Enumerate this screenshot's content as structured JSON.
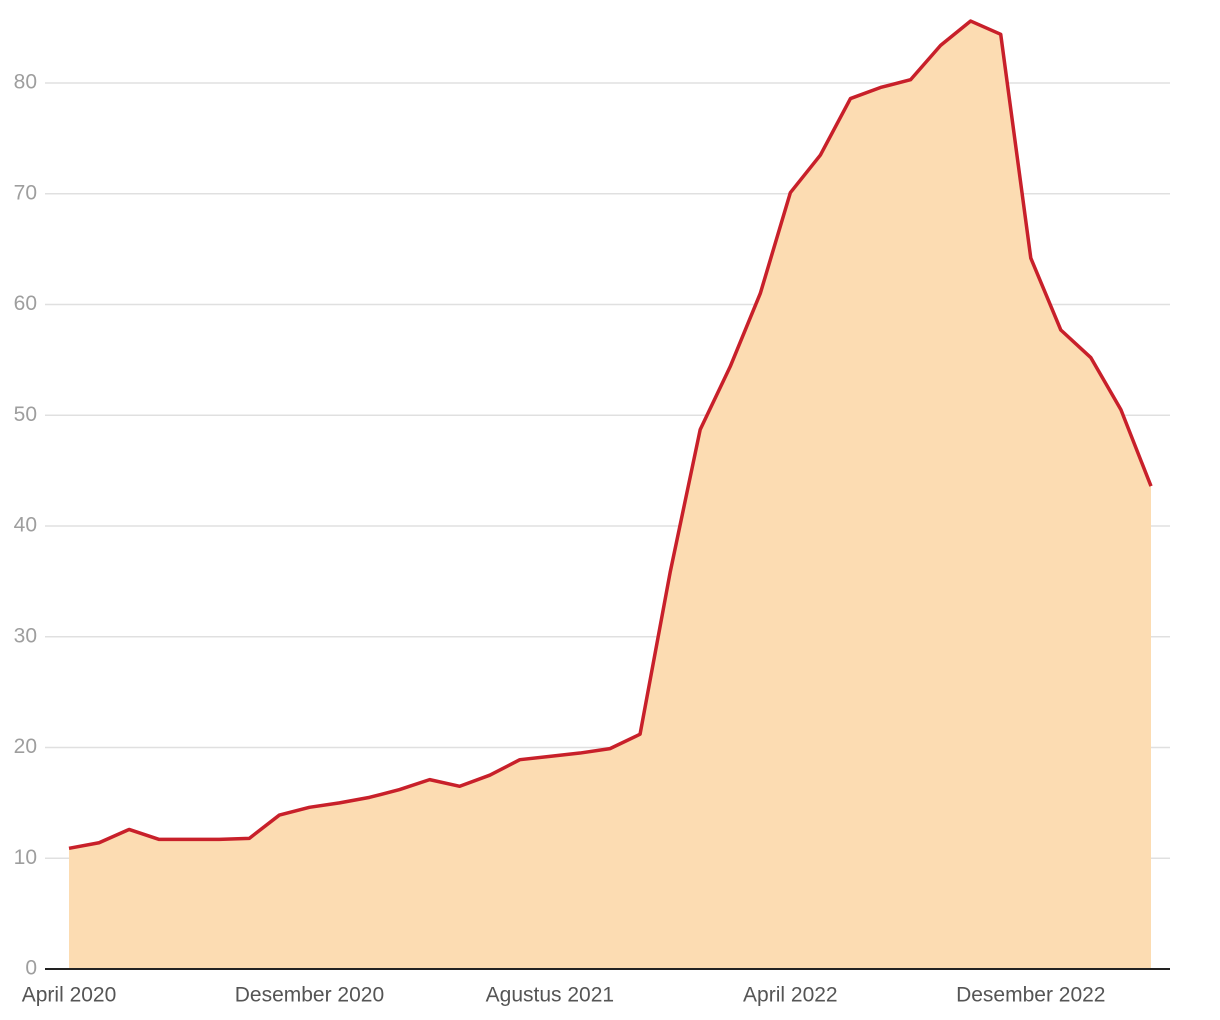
{
  "chart_data": {
    "type": "area",
    "categories": [
      "April 2020",
      null,
      null,
      null,
      null,
      null,
      null,
      null,
      "Desember 2020",
      null,
      null,
      null,
      null,
      null,
      null,
      null,
      "Agustus 2021",
      null,
      null,
      null,
      null,
      null,
      null,
      null,
      "April 2022",
      null,
      null,
      null,
      null,
      null,
      null,
      null,
      "Desember 2022",
      null,
      null,
      null,
      null
    ],
    "values": [
      10.9,
      11.4,
      12.6,
      11.7,
      11.7,
      11.7,
      11.8,
      13.9,
      14.6,
      15.0,
      15.5,
      16.2,
      17.1,
      16.5,
      17.5,
      18.9,
      19.2,
      19.5,
      19.9,
      21.2,
      35.8,
      48.7,
      54.4,
      61.0,
      70.1,
      73.5,
      78.6,
      79.6,
      80.3,
      83.4,
      85.6,
      84.4,
      64.2,
      57.7,
      55.2,
      50.5,
      43.6
    ],
    "color": "#c8202a",
    "fill_color": "#fcdcb2",
    "ylim": [
      0,
      87.5
    ],
    "yticks": [
      0,
      10,
      20,
      30,
      40,
      50,
      60,
      70,
      80
    ],
    "grid": true
  }
}
